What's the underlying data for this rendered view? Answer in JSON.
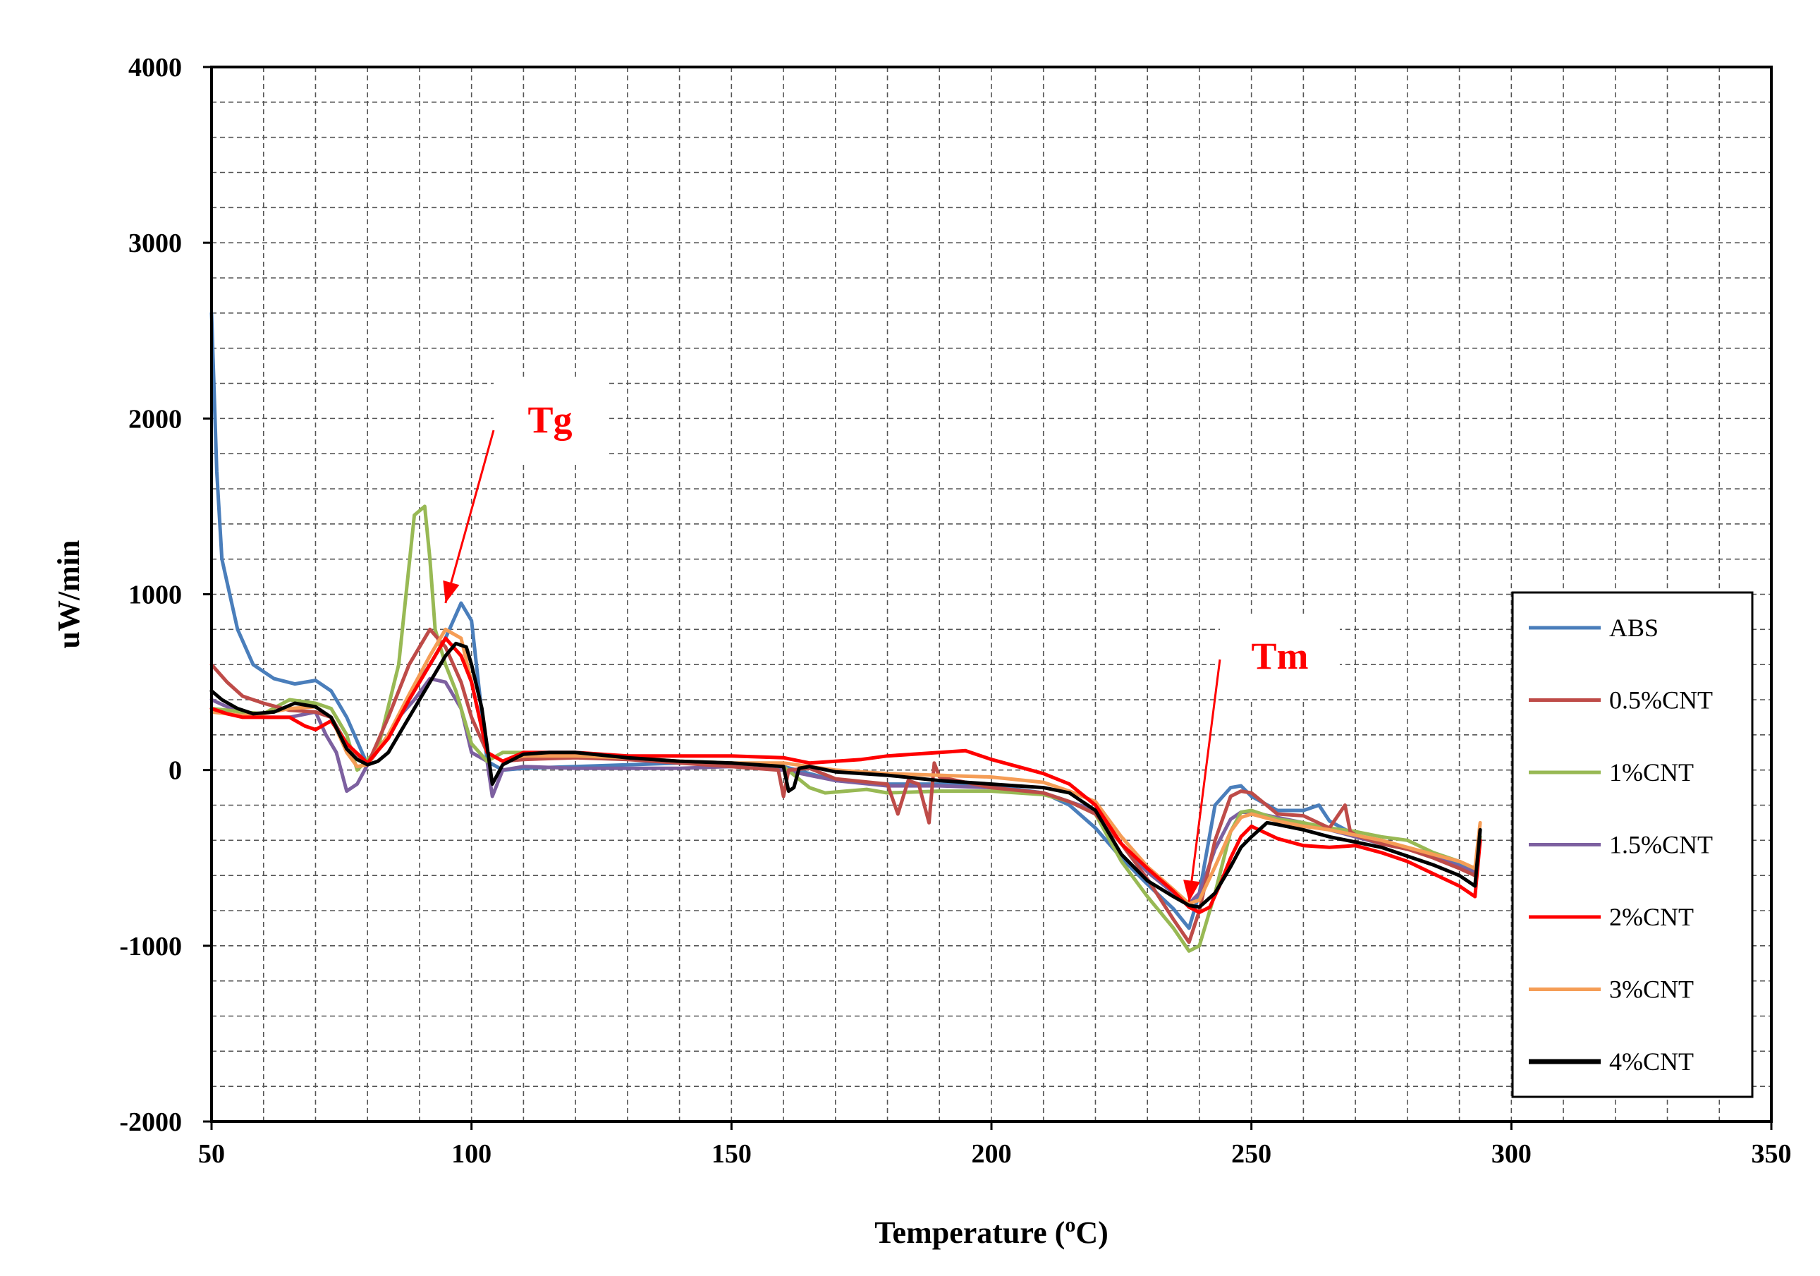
{
  "chart_data": {
    "type": "line",
    "title": "",
    "xlabel": "Temperature (oC)",
    "xlabel_main": "Temperature (",
    "xlabel_sup": "o",
    "xlabel_tail": "C)",
    "ylabel": "uW/min",
    "xlim": [
      50,
      350
    ],
    "ylim": [
      -2000,
      4000
    ],
    "xticks": [
      50,
      100,
      150,
      200,
      250,
      300,
      350
    ],
    "yticks": [
      -2000,
      -1000,
      0,
      1000,
      2000,
      3000,
      4000
    ],
    "x_minor_step": 10,
    "y_minor_step": 200,
    "grid": "dashed major and minor",
    "legend_position": "bottom-right",
    "annotations": [
      {
        "text": "Tg",
        "color": "#ff0000",
        "x": 95,
        "y": 950
      },
      {
        "text": "Tm",
        "color": "#ff0000",
        "x": 238,
        "y": -750
      }
    ],
    "series": [
      {
        "name": "ABS",
        "color": "#4a7ebb",
        "x": [
          50,
          51,
          52,
          55,
          58,
          62,
          66,
          70,
          73,
          76,
          80,
          84,
          88,
          92,
          95,
          98,
          100,
          103,
          106,
          110,
          120,
          130,
          140,
          150,
          160,
          170,
          180,
          190,
          200,
          210,
          215,
          220,
          225,
          230,
          235,
          238,
          240,
          243,
          246,
          248,
          250,
          255,
          260,
          263,
          265,
          270,
          275,
          280,
          285,
          290,
          293,
          294
        ],
        "y": [
          2600,
          1700,
          1200,
          800,
          600,
          520,
          490,
          510,
          450,
          300,
          30,
          200,
          420,
          600,
          750,
          950,
          850,
          50,
          0,
          10,
          20,
          30,
          40,
          40,
          20,
          -60,
          -80,
          -80,
          -90,
          -130,
          -200,
          -330,
          -500,
          -650,
          -790,
          -900,
          -700,
          -200,
          -100,
          -90,
          -150,
          -230,
          -230,
          -200,
          -290,
          -370,
          -410,
          -450,
          -470,
          -540,
          -560,
          -380
        ]
      },
      {
        "name": "0.5%CNT",
        "color": "#be4b48",
        "x": [
          50,
          53,
          56,
          60,
          65,
          70,
          73,
          76,
          80,
          84,
          88,
          92,
          95,
          98,
          100,
          103,
          106,
          110,
          120,
          130,
          140,
          150,
          159,
          160,
          161,
          165,
          170,
          180,
          182,
          184,
          186,
          188,
          189,
          190,
          200,
          210,
          215,
          220,
          225,
          230,
          235,
          238,
          240,
          243,
          246,
          248,
          250,
          255,
          260,
          265,
          268,
          269,
          270,
          275,
          280,
          285,
          290,
          293,
          294
        ],
        "y": [
          600,
          500,
          420,
          380,
          340,
          330,
          300,
          150,
          30,
          300,
          600,
          800,
          700,
          500,
          300,
          100,
          50,
          60,
          70,
          60,
          40,
          20,
          0,
          -150,
          0,
          10,
          -50,
          -80,
          -250,
          -60,
          -80,
          -300,
          40,
          -40,
          -100,
          -130,
          -180,
          -250,
          -420,
          -620,
          -850,
          -980,
          -800,
          -400,
          -150,
          -120,
          -130,
          -250,
          -260,
          -330,
          -200,
          -350,
          -370,
          -420,
          -450,
          -500,
          -560,
          -600,
          -400
        ]
      },
      {
        "name": "1%CNT",
        "color": "#98b954",
        "x": [
          50,
          53,
          56,
          60,
          65,
          70,
          73,
          76,
          78,
          82,
          86,
          89,
          91,
          92,
          93,
          95,
          97,
          100,
          103,
          106,
          110,
          120,
          130,
          140,
          150,
          160,
          165,
          168,
          172,
          176,
          180,
          190,
          200,
          210,
          215,
          220,
          225,
          230,
          235,
          238,
          240,
          243,
          246,
          248,
          250,
          255,
          260,
          265,
          270,
          275,
          280,
          285,
          290,
          293,
          294
        ],
        "y": [
          350,
          340,
          330,
          320,
          400,
          380,
          350,
          200,
          0,
          120,
          600,
          1450,
          1500,
          1200,
          800,
          600,
          450,
          150,
          50,
          100,
          100,
          80,
          70,
          50,
          40,
          20,
          -100,
          -130,
          -120,
          -110,
          -130,
          -120,
          -120,
          -140,
          -180,
          -250,
          -520,
          -720,
          -900,
          -1030,
          -1000,
          -700,
          -350,
          -240,
          -230,
          -280,
          -300,
          -330,
          -350,
          -380,
          -400,
          -470,
          -520,
          -560,
          -380
        ]
      },
      {
        "name": "1.5%CNT",
        "color": "#7d60a0",
        "x": [
          50,
          53,
          56,
          60,
          65,
          70,
          72,
          74,
          76,
          78,
          80,
          83,
          86,
          89,
          92,
          95,
          98,
          100,
          103,
          104,
          106,
          110,
          120,
          130,
          140,
          150,
          160,
          170,
          180,
          190,
          200,
          210,
          215,
          220,
          225,
          230,
          235,
          238,
          240,
          243,
          246,
          248,
          250,
          255,
          260,
          265,
          270,
          275,
          280,
          285,
          290,
          293,
          294
        ],
        "y": [
          400,
          360,
          320,
          300,
          300,
          330,
          200,
          100,
          -120,
          -80,
          30,
          150,
          300,
          400,
          520,
          500,
          350,
          100,
          50,
          -150,
          0,
          20,
          10,
          10,
          10,
          20,
          0,
          -60,
          -90,
          -90,
          -100,
          -130,
          -180,
          -230,
          -420,
          -580,
          -700,
          -760,
          -700,
          -450,
          -280,
          -240,
          -240,
          -270,
          -300,
          -340,
          -380,
          -420,
          -450,
          -490,
          -550,
          -580,
          -400
        ]
      },
      {
        "name": "2%CNT",
        "color": "#ff0000",
        "x": [
          50,
          53,
          56,
          60,
          65,
          68,
          70,
          73,
          76,
          80,
          84,
          88,
          92,
          95,
          98,
          100,
          103,
          106,
          110,
          120,
          130,
          140,
          150,
          160,
          165,
          170,
          175,
          180,
          190,
          195,
          197,
          200,
          205,
          210,
          215,
          220,
          225,
          230,
          235,
          238,
          240,
          242,
          244,
          246,
          248,
          250,
          255,
          260,
          265,
          270,
          275,
          280,
          285,
          290,
          292,
          293,
          294
        ],
        "y": [
          350,
          320,
          300,
          300,
          300,
          250,
          230,
          280,
          150,
          40,
          180,
          400,
          600,
          750,
          650,
          500,
          100,
          50,
          100,
          100,
          80,
          80,
          80,
          70,
          40,
          50,
          60,
          80,
          100,
          110,
          90,
          60,
          20,
          -20,
          -80,
          -200,
          -420,
          -560,
          -690,
          -780,
          -810,
          -780,
          -650,
          -500,
          -380,
          -320,
          -390,
          -430,
          -440,
          -430,
          -470,
          -520,
          -590,
          -660,
          -700,
          -720,
          -400
        ]
      },
      {
        "name": "3%CNT",
        "color": "#f59d56",
        "x": [
          50,
          53,
          56,
          60,
          65,
          70,
          73,
          76,
          78,
          80,
          84,
          88,
          92,
          95,
          98,
          100,
          103,
          106,
          110,
          120,
          130,
          140,
          150,
          160,
          170,
          180,
          190,
          200,
          210,
          215,
          220,
          225,
          230,
          235,
          238,
          240,
          243,
          246,
          248,
          250,
          255,
          260,
          265,
          270,
          275,
          280,
          285,
          290,
          293,
          294
        ],
        "y": [
          330,
          320,
          310,
          320,
          350,
          360,
          300,
          100,
          20,
          30,
          200,
          430,
          650,
          800,
          750,
          500,
          100,
          50,
          80,
          80,
          70,
          50,
          40,
          40,
          0,
          -20,
          -30,
          -40,
          -70,
          -120,
          -180,
          -380,
          -550,
          -680,
          -760,
          -740,
          -550,
          -350,
          -270,
          -250,
          -290,
          -320,
          -340,
          -370,
          -400,
          -440,
          -480,
          -520,
          -560,
          -300
        ]
      },
      {
        "name": "4%CNT",
        "color": "#000000",
        "x": [
          50,
          52,
          55,
          58,
          62,
          66,
          70,
          73,
          76,
          78,
          80,
          82,
          84,
          87,
          90,
          93,
          95,
          97,
          99,
          100,
          102,
          104,
          106,
          110,
          115,
          120,
          130,
          140,
          150,
          155,
          160,
          161,
          162,
          163,
          165,
          170,
          180,
          190,
          200,
          210,
          215,
          220,
          225,
          230,
          235,
          238,
          240,
          243,
          246,
          248,
          250,
          253,
          255,
          260,
          265,
          270,
          275,
          280,
          285,
          290,
          292,
          293,
          294
        ],
        "y": [
          450,
          400,
          350,
          320,
          330,
          380,
          360,
          300,
          120,
          60,
          30,
          50,
          100,
          250,
          400,
          550,
          650,
          720,
          700,
          600,
          350,
          -80,
          30,
          90,
          100,
          100,
          70,
          50,
          40,
          30,
          20,
          -120,
          -100,
          10,
          20,
          -10,
          -30,
          -60,
          -80,
          -100,
          -130,
          -230,
          -480,
          -630,
          -720,
          -770,
          -780,
          -700,
          -550,
          -440,
          -380,
          -300,
          -310,
          -340,
          -380,
          -410,
          -440,
          -490,
          -540,
          -600,
          -640,
          -660,
          -340
        ]
      }
    ]
  }
}
